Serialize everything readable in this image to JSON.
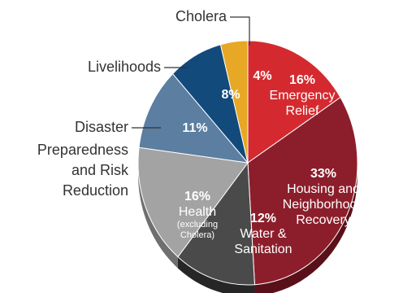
{
  "chart_data": {
    "type": "pie",
    "title": "",
    "slices": [
      {
        "label": "Emergency Relief",
        "value": 16,
        "pct_text": "16%",
        "name_lines": [
          "Emergency",
          "Relief"
        ],
        "note": "",
        "color": "#d42a2f",
        "dark": "#8e1a1e",
        "label_side": "inside"
      },
      {
        "label": "Housing and Neighborhood Recovery",
        "value": 33,
        "pct_text": "33%",
        "name_lines": [
          "Housing and",
          "Neighborhood",
          "Recovery"
        ],
        "note": "",
        "color": "#8c1e2b",
        "dark": "#5a1019",
        "label_side": "inside"
      },
      {
        "label": "Water & Sanitation",
        "value": 12,
        "pct_text": "12%",
        "name_lines": [
          "Water &",
          "Sanitation"
        ],
        "note": "",
        "color": "#4a4a4a",
        "dark": "#262626",
        "label_side": "inside"
      },
      {
        "label": "Health (excluding Cholera)",
        "value": 16,
        "pct_text": "16%",
        "name_lines": [
          "Health"
        ],
        "note_lines": [
          "(excluding",
          "Cholera)"
        ],
        "color": "#a3a3a3",
        "dark": "#6f6f6f",
        "label_side": "inside"
      },
      {
        "label": "Disaster Preparedness and Risk Reduction",
        "value": 11,
        "pct_text": "11%",
        "name_lines": [
          "Disaster",
          "Preparedness",
          "and Risk",
          "Reduction"
        ],
        "note": "",
        "color": "#5b7ea1",
        "dark": "#36506b",
        "label_side": "outside"
      },
      {
        "label": "Livelihoods",
        "value": 8,
        "pct_text": "8%",
        "name_lines": [
          "Livelihoods"
        ],
        "note": "",
        "color": "#124a7c",
        "dark": "#0a2c4b",
        "label_side": "outside"
      },
      {
        "label": "Cholera",
        "value": 4,
        "pct_text": "4%",
        "name_lines": [
          "Cholera"
        ],
        "note": "",
        "color": "#e6a825",
        "dark": "#a3761a",
        "label_side": "outside"
      }
    ]
  }
}
